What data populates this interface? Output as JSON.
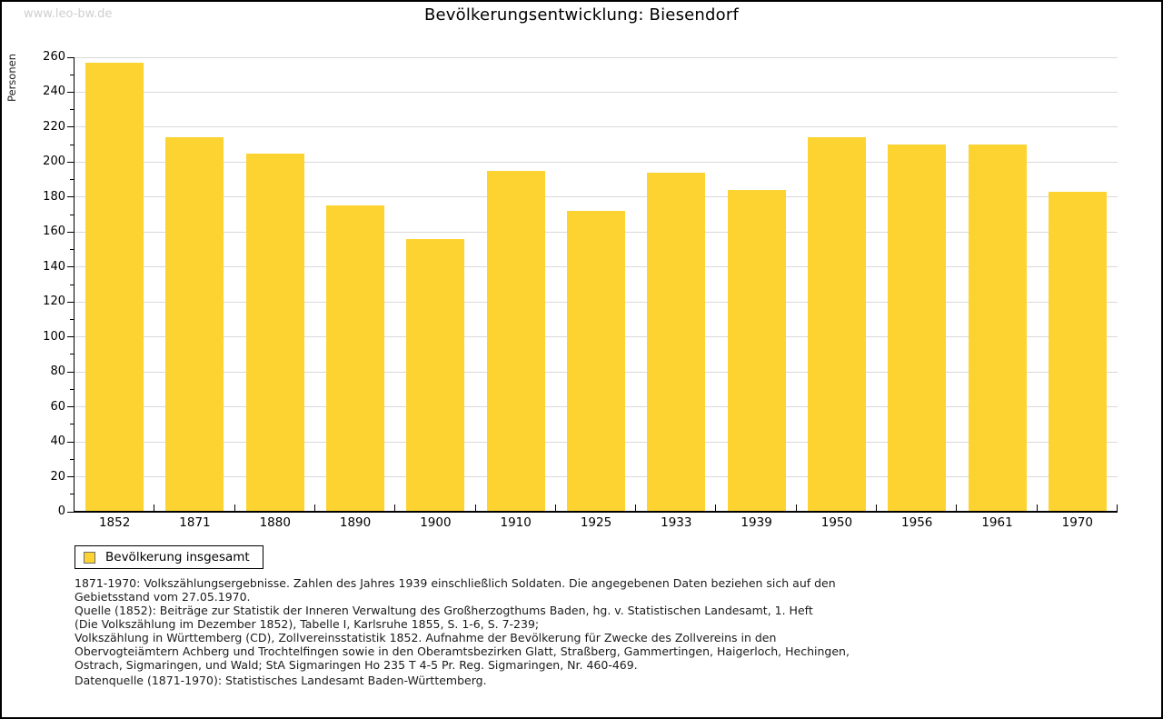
{
  "watermark": "www.leo-bw.de",
  "title": "Bevölkerungsentwicklung: Biesendorf",
  "chart_data": {
    "type": "bar",
    "title": "Bevölkerungsentwicklung: Biesendorf",
    "xlabel": "",
    "ylabel": "Personen",
    "categories": [
      "1852",
      "1871",
      "1880",
      "1890",
      "1900",
      "1910",
      "1925",
      "1933",
      "1939",
      "1950",
      "1956",
      "1961",
      "1970"
    ],
    "series": [
      {
        "name": "Bevölkerung insgesamt",
        "values": [
          257,
          214,
          205,
          175,
          156,
          195,
          172,
          194,
          184,
          214,
          210,
          210,
          183
        ]
      }
    ],
    "ylim": [
      0,
      260
    ],
    "ytick_step": 20,
    "yminor_step": 10,
    "grid": "horizontal",
    "legend_position": "bottom-left",
    "bar_color": "#FCD330"
  },
  "legend": {
    "items": [
      {
        "label": "Bevölkerung insgesamt",
        "color": "#FCD330"
      }
    ]
  },
  "footnotes": [
    "1871-1970: Volkszählungsergebnisse. Zahlen des Jahres 1939 einschließlich Soldaten. Die angegebenen Daten beziehen sich auf den",
    "Gebietsstand vom 27.05.1970.",
    "Quelle (1852): Beiträge zur Statistik der Inneren Verwaltung des Großherzogthums Baden, hg. v. Statistischen Landesamt, 1. Heft",
    "(Die Volkszählung im Dezember 1852), Tabelle I, Karlsruhe 1855, S. 1-6, S. 7-239;",
    "Volkszählung in Württemberg (CD), Zollvereinsstatistik 1852. Aufnahme der Bevölkerung für Zwecke des Zollvereins in den",
    "Obervogteiämtern Achberg und Trochtelfingen sowie in den Oberamtsbezirken Glatt, Straßberg, Gammertingen, Haigerloch, Hechingen,",
    "Ostrach, Sigmaringen, und Wald; StA Sigmaringen Ho 235 T 4-5 Pr. Reg. Sigmaringen, Nr. 460-469."
  ],
  "datasource": "Datenquelle (1871-1970): Statistisches Landesamt Baden-Württemberg."
}
